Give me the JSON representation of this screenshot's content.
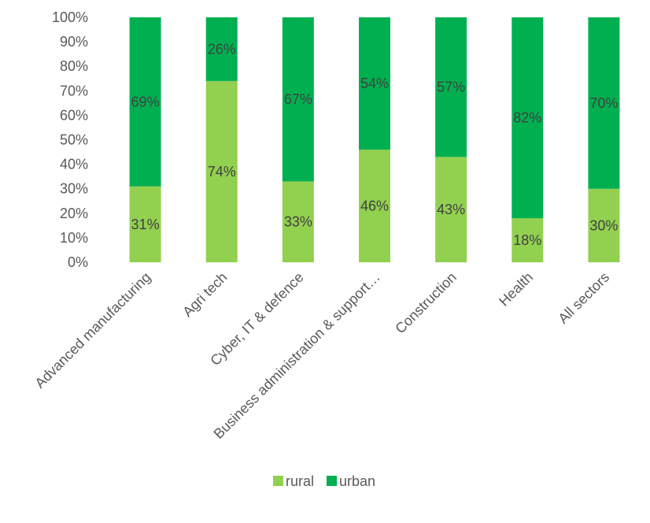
{
  "chart_data": {
    "type": "bar",
    "stacked": true,
    "percent": true,
    "categories": [
      "Advanced manufacturing",
      "Agri tech",
      "Cyber, IT & defence",
      "Business administration & support…",
      "Construction",
      "Health",
      "All sectors"
    ],
    "series": [
      {
        "name": "rural",
        "color": "#92d050",
        "values": [
          31,
          74,
          33,
          46,
          43,
          18,
          30
        ],
        "labels": [
          "31%",
          "74%",
          "33%",
          "46%",
          "43%",
          "18%",
          "30%"
        ]
      },
      {
        "name": "urban",
        "color": "#00b050",
        "values": [
          69,
          26,
          67,
          54,
          57,
          82,
          70
        ],
        "labels": [
          "69%",
          "26%",
          "67%",
          "54%",
          "57%",
          "82%",
          "70%"
        ]
      }
    ],
    "ylim": [
      0,
      100
    ],
    "yticks": [
      "0%",
      "10%",
      "20%",
      "30%",
      "40%",
      "50%",
      "60%",
      "70%",
      "80%",
      "90%",
      "100%"
    ],
    "title": "",
    "xlabel": "",
    "ylabel": "",
    "legend_position": "bottom",
    "grid": false
  }
}
